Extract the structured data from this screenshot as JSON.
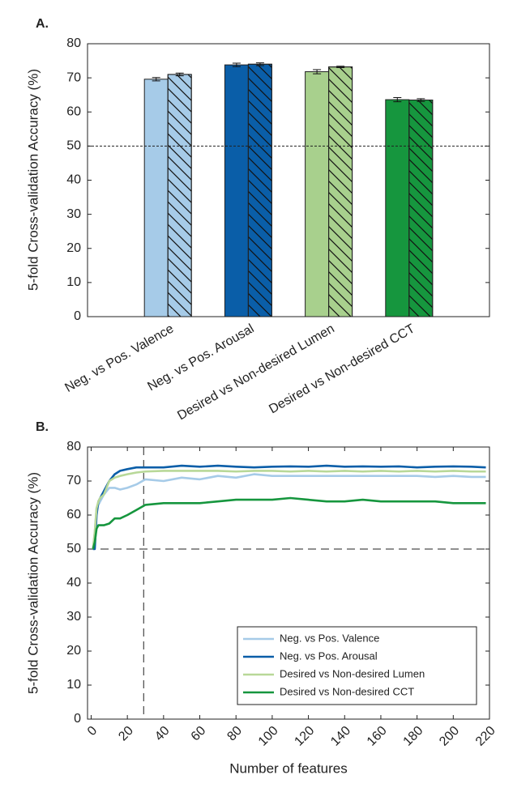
{
  "chart_data": [
    {
      "type": "bar",
      "panel_label": "A.",
      "ylabel": "5-fold Cross-validation Accuracy (%)",
      "categories": [
        "Neg. vs Pos. Valence",
        "Neg. vs Pos. Arousal",
        "Desired vs Non-desired Lumen",
        "Desired vs Non-desired CCT"
      ],
      "colors": [
        "#a6cbe8",
        "#0a5ea8",
        "#a8d08d",
        "#16963e"
      ],
      "series": [
        {
          "hatch": false,
          "values": [
            69.6,
            73.8,
            71.8,
            63.6
          ],
          "errors": [
            0.5,
            0.5,
            0.6,
            0.6
          ]
        },
        {
          "hatch": true,
          "values": [
            71.0,
            74.0,
            73.2,
            63.5
          ],
          "errors": [
            0.4,
            0.4,
            0.2,
            0.4
          ]
        }
      ],
      "reference_line": 50,
      "ylim": [
        0,
        80
      ],
      "yticks": [
        0,
        10,
        20,
        30,
        40,
        50,
        60,
        70,
        80
      ]
    },
    {
      "type": "line",
      "panel_label": "B.",
      "ylabel": "5-fold Cross-validation Accuracy (%)",
      "xlabel": "Number of features",
      "x": [
        1,
        2,
        3,
        4,
        5,
        7,
        10,
        13,
        16,
        20,
        25,
        30,
        40,
        50,
        60,
        70,
        80,
        90,
        100,
        110,
        120,
        130,
        140,
        150,
        160,
        170,
        180,
        190,
        200,
        210,
        218
      ],
      "series": [
        {
          "name": "Neg. vs Pos. Valence",
          "color": "#a6cbe8",
          "values": [
            50,
            55,
            62,
            63,
            64,
            66,
            68,
            68,
            67.5,
            68,
            69,
            70.5,
            70,
            71,
            70.5,
            71.5,
            71,
            72,
            71.5,
            71.5,
            71.5,
            71.5,
            71.5,
            71.5,
            71.5,
            71.5,
            71.5,
            71.2,
            71.5,
            71.2,
            71.2
          ]
        },
        {
          "name": "Neg. vs Pos. Arousal",
          "color": "#0a5ea8",
          "values": [
            50,
            50,
            60,
            64,
            65,
            67,
            70,
            72,
            73,
            73.5,
            74,
            74,
            74,
            74.5,
            74.2,
            74.5,
            74.2,
            74,
            74.2,
            74.3,
            74.2,
            74.5,
            74.2,
            74.3,
            74.2,
            74.3,
            74,
            74.2,
            74.3,
            74.2,
            74
          ]
        },
        {
          "name": "Desired vs Non-desired Lumen",
          "color": "#b8d898",
          "values": [
            50,
            55,
            62,
            64,
            65,
            66,
            70,
            71,
            71.5,
            72,
            72.5,
            72.8,
            73,
            73,
            73,
            73,
            72.8,
            73,
            73,
            72.8,
            73,
            72.8,
            73,
            72.8,
            73,
            72.8,
            73,
            72.8,
            73,
            72.8,
            72.8
          ]
        },
        {
          "name": "Desired vs Non-desired CCT",
          "color": "#16963e",
          "values": [
            50,
            52,
            56,
            57,
            57,
            57,
            57.5,
            59,
            59,
            60,
            61.5,
            63,
            63.5,
            63.5,
            63.5,
            64,
            64.5,
            64.5,
            64.5,
            65,
            64.5,
            64,
            64,
            64.5,
            64,
            64,
            64,
            64,
            63.5,
            63.5,
            63.5
          ]
        }
      ],
      "hline": 50,
      "vline": 29,
      "legend": "lower right",
      "xlim": [
        -2,
        220
      ],
      "xticks": [
        0,
        20,
        40,
        60,
        80,
        100,
        120,
        140,
        160,
        180,
        200,
        220
      ],
      "ylim": [
        0,
        80
      ],
      "yticks": [
        0,
        10,
        20,
        30,
        40,
        50,
        60,
        70,
        80
      ]
    }
  ]
}
